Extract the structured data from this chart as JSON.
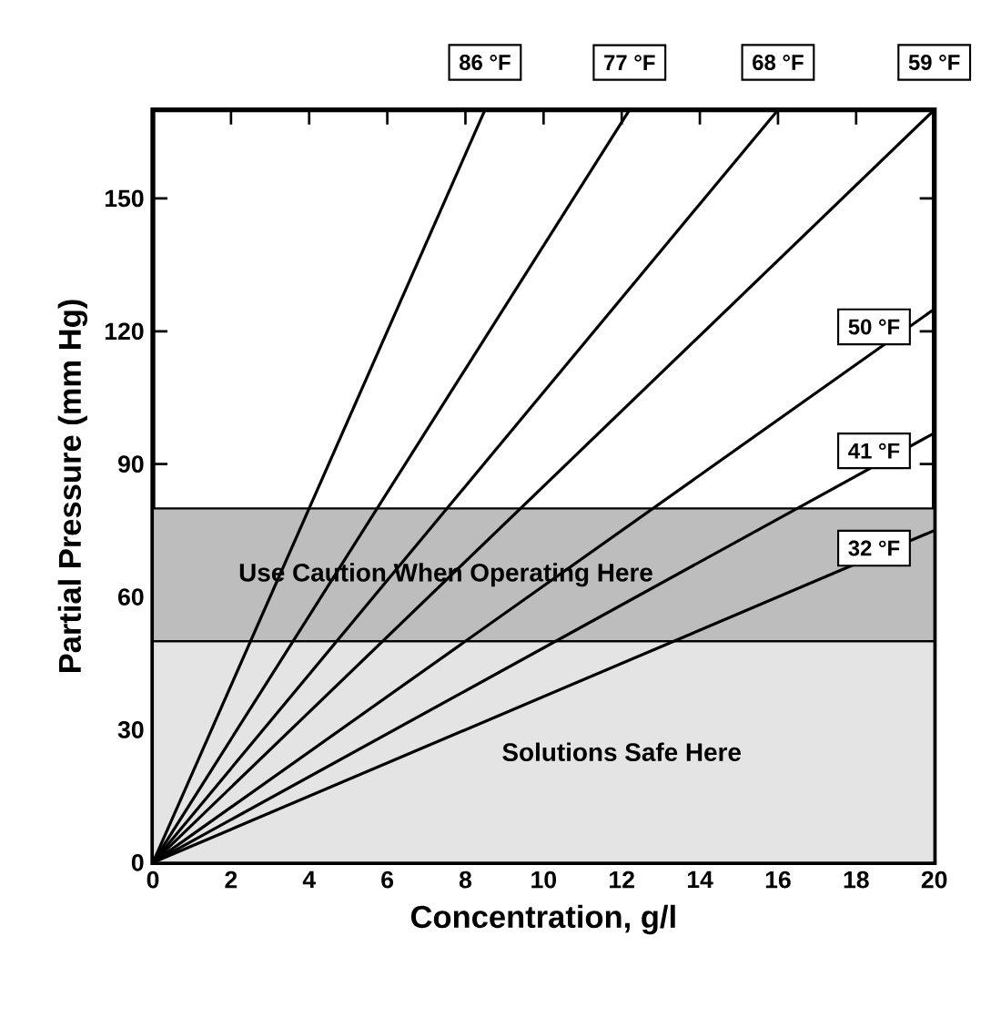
{
  "chart_data": {
    "type": "line",
    "xlabel": "Concentration, g/l",
    "ylabel": "Partial Pressure (mm Hg)",
    "xlim": [
      0,
      20
    ],
    "ylim": [
      0,
      170
    ],
    "xticks": [
      0,
      2,
      4,
      6,
      8,
      10,
      12,
      14,
      16,
      18,
      20
    ],
    "yticks": [
      0,
      30,
      60,
      90,
      120,
      150
    ],
    "grid": false,
    "legend": "right",
    "marker": "none",
    "line_style": "solid",
    "series": [
      {
        "name": "86 °F",
        "color": "#000000",
        "x": [
          0,
          8.5
        ],
        "values": [
          0,
          170
        ]
      },
      {
        "name": "77 °F",
        "color": "#000000",
        "x": [
          0,
          12.2
        ],
        "values": [
          0,
          170
        ]
      },
      {
        "name": "68 °F",
        "color": "#000000",
        "x": [
          0,
          16
        ],
        "values": [
          0,
          170
        ]
      },
      {
        "name": "59 °F",
        "color": "#000000",
        "x": [
          0,
          20
        ],
        "values": [
          0,
          170
        ]
      },
      {
        "name": "50 °F",
        "color": "#000000",
        "x": [
          0,
          20
        ],
        "values": [
          0,
          125
        ]
      },
      {
        "name": "41 °F",
        "color": "#000000",
        "x": [
          0,
          20
        ],
        "values": [
          0,
          97
        ]
      },
      {
        "name": "32 °F",
        "color": "#000000",
        "x": [
          0,
          20
        ],
        "values": [
          0,
          75
        ]
      }
    ],
    "bands": [
      {
        "axis": "y",
        "from": 0,
        "to": 50,
        "label": "Solutions Safe Here",
        "color": "#e4e4e4"
      },
      {
        "axis": "y",
        "from": 50,
        "to": 80,
        "label": "Use  Caution When Operating Here",
        "color": "#bdbdbd"
      }
    ]
  }
}
